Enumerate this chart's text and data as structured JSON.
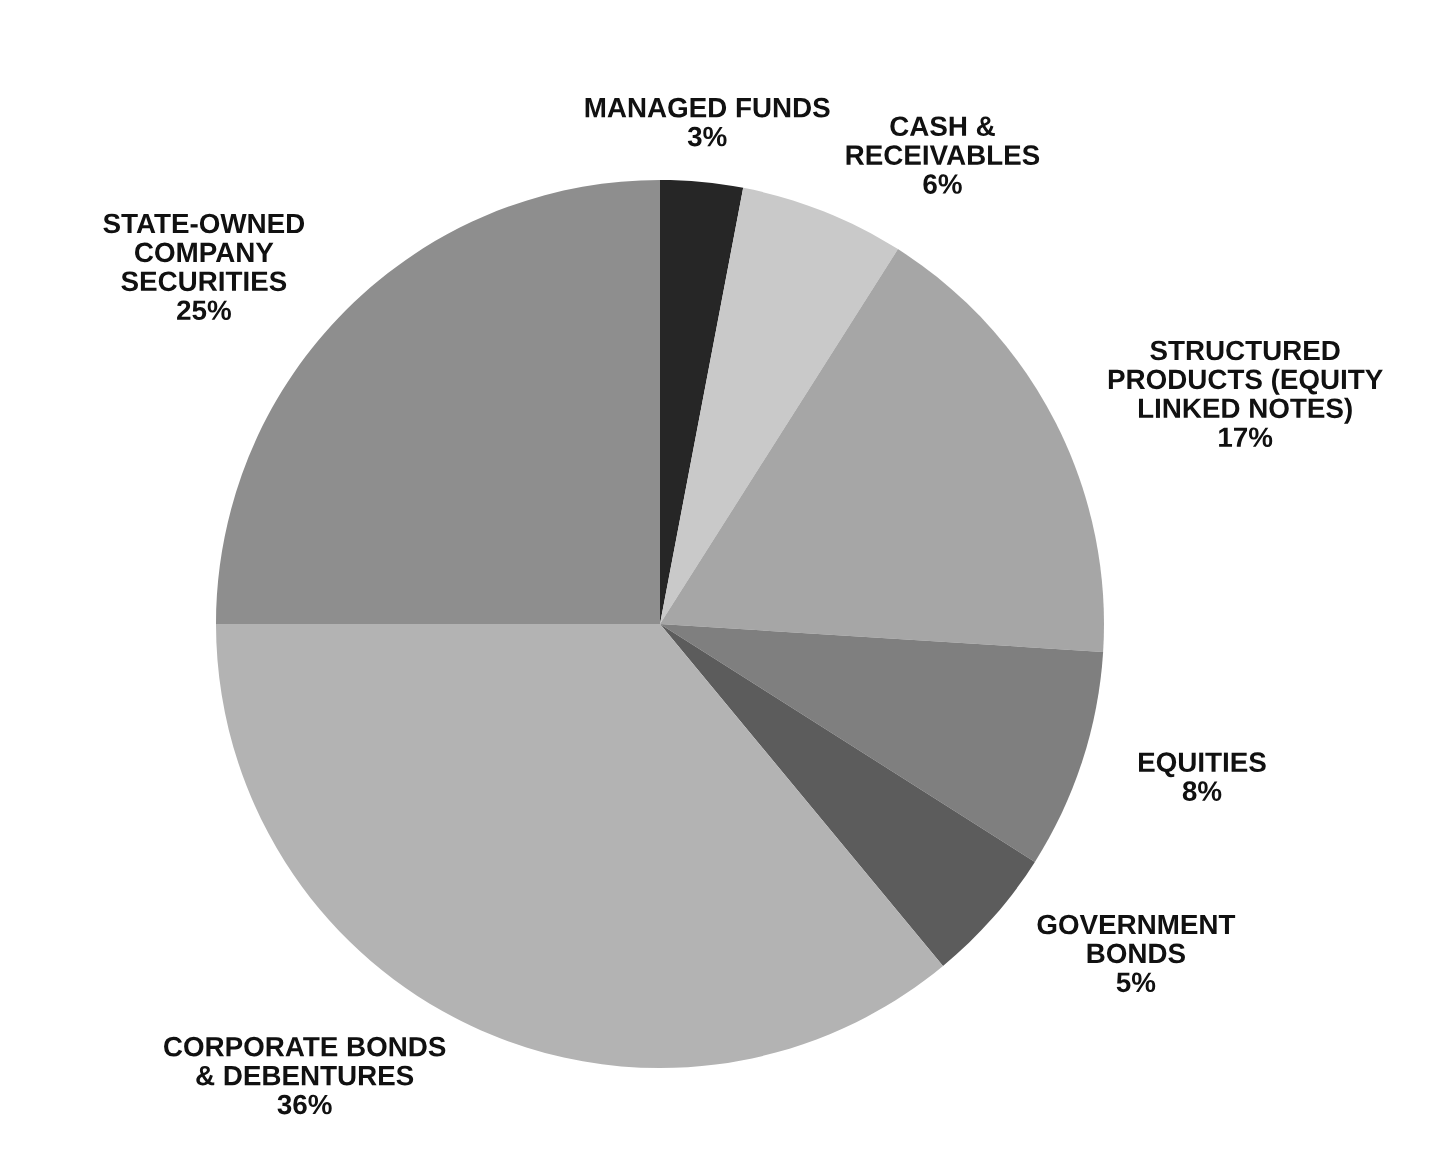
{
  "chart_data": {
    "type": "pie",
    "categories": [
      "MANAGED FUNDS",
      "CASH &\nRECEIVABLES",
      "STRUCTURED\nPRODUCTS (EQUITY\nLINKED NOTES)",
      "EQUITIES",
      "GOVERNMENT\nBONDS",
      "CORPORATE BONDS\n& DEBENTURES",
      "STATE-OWNED\nCOMPANY\nSECURITIES"
    ],
    "values": [
      3,
      6,
      17,
      8,
      5,
      36,
      25
    ],
    "value_labels": [
      "3%",
      "6%",
      "17%",
      "8%",
      "5%",
      "36%",
      "25%"
    ],
    "colors": [
      "#262626",
      "#c9c9c9",
      "#a6a6a6",
      "#7f7f7f",
      "#5c5c5c",
      "#b3b3b3",
      "#8e8e8e"
    ]
  }
}
